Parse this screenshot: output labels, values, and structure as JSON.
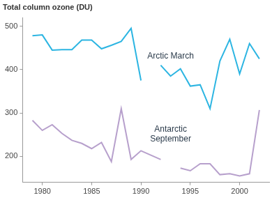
{
  "chart_data": {
    "type": "line",
    "title": "Total column ozone (DU)",
    "x": [
      1979,
      1980,
      1981,
      1982,
      1983,
      1984,
      1985,
      1986,
      1987,
      1988,
      1989,
      1990,
      1991,
      1992,
      1993,
      1994,
      1995,
      1996,
      1997,
      1998,
      1999,
      2000,
      2001,
      2002
    ],
    "series": [
      {
        "name": "Arctic March",
        "color": "#2cb5e2",
        "values": [
          478,
          480,
          445,
          446,
          446,
          468,
          468,
          448,
          456,
          465,
          495,
          375,
          null,
          410,
          385,
          402,
          362,
          365,
          310,
          420,
          470,
          390,
          460,
          425
        ]
      },
      {
        "name": "Antarctic September",
        "color": "#b7a0cc",
        "values": [
          283,
          260,
          273,
          253,
          237,
          230,
          218,
          232,
          188,
          310,
          193,
          213,
          203,
          193,
          null,
          173,
          167,
          183,
          183,
          158,
          160,
          155,
          160,
          307
        ]
      }
    ],
    "xlim": [
      1978,
      2003
    ],
    "xticks": [
      1980,
      1985,
      1990,
      1995,
      2000
    ],
    "ylim": [
      140,
      520
    ],
    "yticks": [
      200,
      300,
      400,
      500
    ],
    "grid": false
  }
}
